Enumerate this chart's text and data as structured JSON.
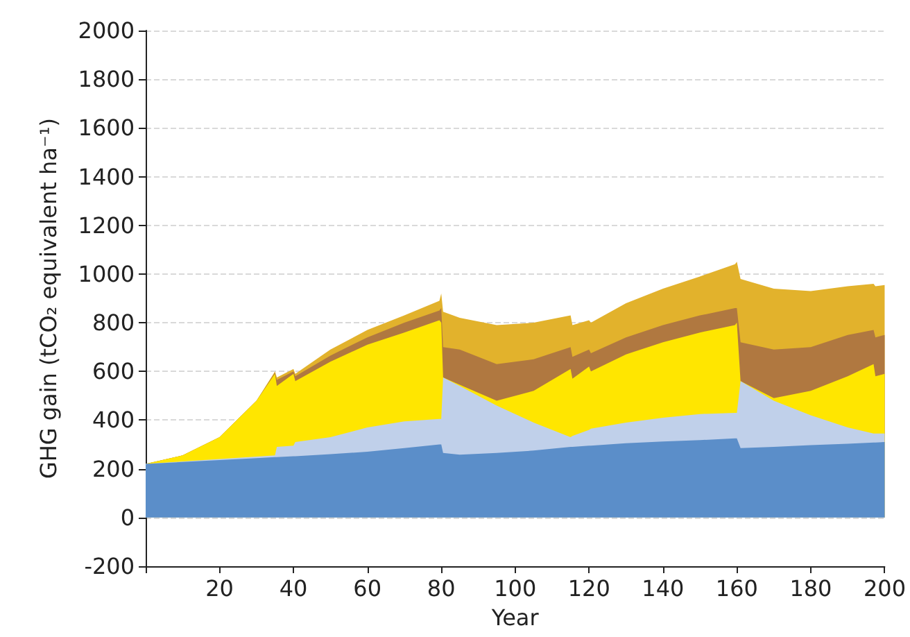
{
  "chart_data": {
    "type": "area",
    "stacked": true,
    "xlabel": "Year",
    "ylabel": "GHG gain (tCO₂ equivalent ha⁻¹)",
    "x": [
      0,
      10,
      20,
      30,
      35,
      35.5,
      40,
      40.5,
      50,
      60,
      70,
      79.5,
      80,
      80.5,
      85,
      95,
      105,
      115,
      115.5,
      120,
      120.5,
      130,
      140,
      150,
      159.5,
      160,
      161,
      170,
      180,
      190,
      197,
      197.5,
      200
    ],
    "series": [
      {
        "color": "#5b8ec9",
        "values": [
          220,
          228,
          236,
          244,
          248,
          248,
          252,
          252,
          260,
          270,
          285,
          300,
          300,
          265,
          258,
          265,
          275,
          290,
          290,
          295,
          295,
          305,
          312,
          318,
          325,
          325,
          285,
          290,
          297,
          303,
          308,
          308,
          310
        ]
      },
      {
        "color": "#c0d0ea",
        "values": [
          0,
          2,
          4,
          6,
          7,
          42,
          43,
          58,
          70,
          100,
          110,
          105,
          105,
          310,
          282,
          195,
          115,
          40,
          45,
          65,
          70,
          85,
          98,
          107,
          105,
          105,
          275,
          190,
          123,
          67,
          37,
          37,
          35
        ]
      },
      {
        "color": "#ffe600",
        "values": [
          0,
          25,
          90,
          230,
          335,
          250,
          295,
          250,
          310,
          340,
          365,
          405,
          395,
          0,
          5,
          20,
          130,
          280,
          235,
          260,
          235,
          280,
          310,
          335,
          360,
          370,
          0,
          10,
          100,
          210,
          285,
          235,
          245
        ]
      },
      {
        "color": "#b07840",
        "values": [
          0,
          0,
          0,
          0,
          5,
          25,
          10,
          20,
          25,
          30,
          40,
          40,
          60,
          125,
          145,
          150,
          130,
          90,
          90,
          70,
          75,
          70,
          70,
          70,
          70,
          60,
          160,
          200,
          180,
          170,
          140,
          160,
          160
        ]
      },
      {
        "color": "#e2b22c",
        "values": [
          0,
          0,
          0,
          0,
          5,
          10,
          10,
          10,
          25,
          30,
          30,
          40,
          60,
          145,
          130,
          160,
          150,
          130,
          130,
          120,
          125,
          140,
          150,
          160,
          180,
          190,
          260,
          250,
          230,
          200,
          190,
          210,
          205
        ]
      }
    ],
    "xlim": [
      0,
      200
    ],
    "xticks": [
      {
        "value": 0,
        "label": null
      },
      20,
      40,
      60,
      80,
      100,
      120,
      140,
      160,
      180,
      200
    ],
    "ylim": [
      -200,
      2000
    ],
    "yticks": [
      -200,
      0,
      200,
      400,
      600,
      800,
      1000,
      1200,
      1400,
      1600,
      1800,
      2000
    ],
    "grid": "y"
  }
}
